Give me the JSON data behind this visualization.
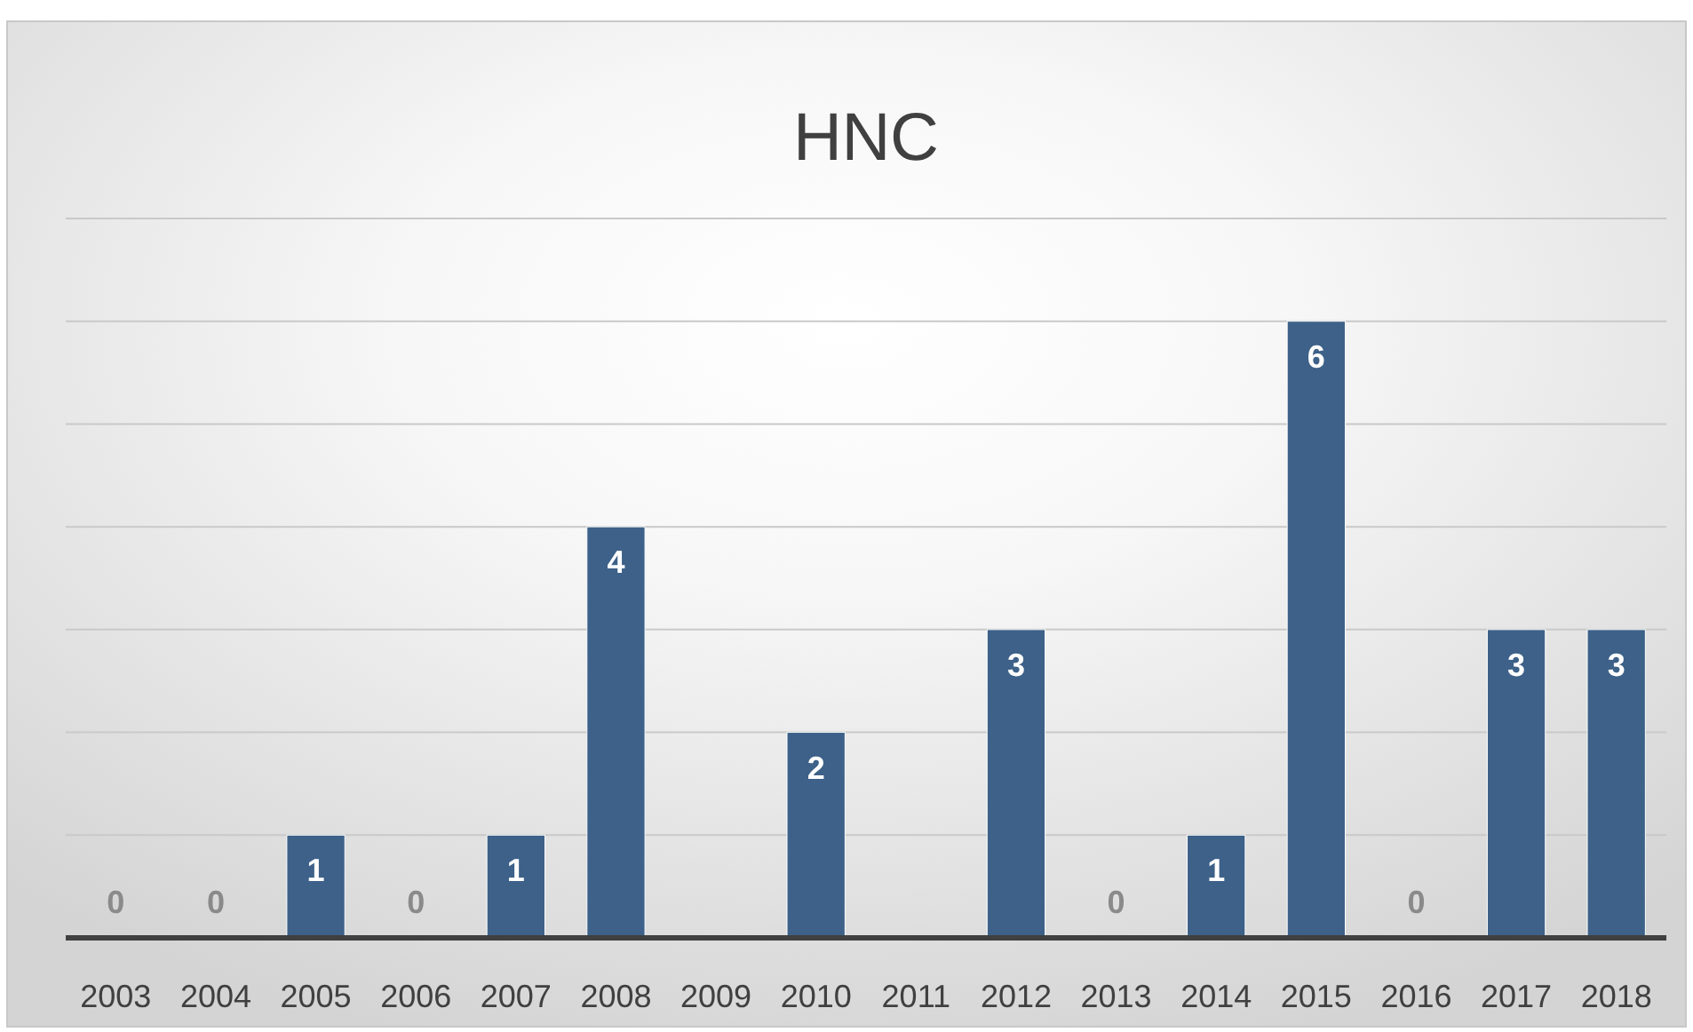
{
  "chart_data": {
    "type": "bar",
    "title": "HNC",
    "categories": [
      "2003",
      "2004",
      "2005",
      "2006",
      "2007",
      "2008",
      "2009",
      "2010",
      "2011",
      "2012",
      "2013",
      "2014",
      "2015",
      "2016",
      "2017",
      "2018"
    ],
    "values": [
      0,
      0,
      1,
      0,
      1,
      4,
      null,
      2,
      null,
      3,
      0,
      1,
      6,
      0,
      3,
      3
    ],
    "value_labels": [
      "0",
      "0",
      "1",
      "0",
      "1",
      "4",
      null,
      "2",
      null,
      "3",
      "0",
      "1",
      "6",
      "0",
      "3",
      "3"
    ],
    "color": "#3d6188",
    "ylim": [
      0,
      7
    ],
    "yticks": [
      {
        "value": 0,
        "label": null
      },
      {
        "value": 1,
        "label": null
      },
      {
        "value": 2,
        "label": null
      },
      {
        "value": 3,
        "label": null
      },
      {
        "value": 4,
        "label": null
      },
      {
        "value": 5,
        "label": null
      },
      {
        "value": 6,
        "label": null
      },
      {
        "value": 7,
        "label": null
      }
    ],
    "tick_labels": "x",
    "grid": "y"
  }
}
